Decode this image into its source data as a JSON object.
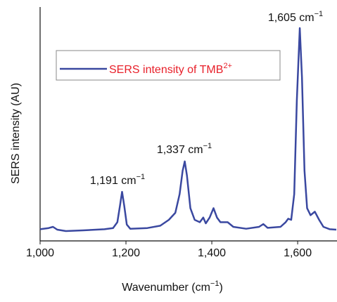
{
  "chart_data": {
    "type": "line",
    "xlabel": "Wavenumber (cm",
    "xlabel_sup": "−1",
    "xlabel_end": ")",
    "ylabel": "SERS intensity (AU)",
    "x": [
      1000,
      1020,
      1030,
      1040,
      1060,
      1100,
      1150,
      1170,
      1180,
      1186,
      1191,
      1196,
      1202,
      1210,
      1250,
      1280,
      1300,
      1315,
      1325,
      1332,
      1337,
      1342,
      1350,
      1360,
      1372,
      1380,
      1386,
      1395,
      1404,
      1412,
      1420,
      1437,
      1450,
      1480,
      1510,
      1520,
      1530,
      1560,
      1572,
      1578,
      1585,
      1592,
      1598,
      1605,
      1610,
      1616,
      1622,
      1630,
      1640,
      1650,
      1660,
      1675,
      1690
    ],
    "series": [
      {
        "name": "SERS intensity of TMB",
        "name_sup": "2+",
        "color": "#3a48a0",
        "legend_text_color": "#e8202a",
        "values": [
          5,
          5.5,
          6,
          4.8,
          4.2,
          4.5,
          5,
          5.5,
          8,
          15,
          21,
          15,
          7,
          5.2,
          5.5,
          6.5,
          9,
          12,
          20,
          30,
          34,
          28,
          14,
          9,
          8,
          10,
          7.5,
          10,
          14,
          10,
          8,
          8,
          6,
          5.2,
          6,
          7.2,
          5.6,
          6,
          8,
          9.5,
          9,
          20,
          60,
          91,
          70,
          30,
          14,
          11,
          12.5,
          9,
          6,
          5,
          4.8
        ]
      }
    ],
    "xlim": [
      1000,
      1690
    ],
    "ylim": [
      0,
      100
    ],
    "xticks": [
      {
        "value": 1000,
        "label": "1,000"
      },
      {
        "value": 1200,
        "label": "1,200"
      },
      {
        "value": 1400,
        "label": "1,400"
      },
      {
        "value": 1600,
        "label": "1,600"
      }
    ],
    "annotations": [
      {
        "text": "1,191 cm",
        "sup": "−1"
      },
      {
        "text": "1,337 cm",
        "sup": "−1"
      },
      {
        "text": "1,605 cm",
        "sup": "−1"
      }
    ],
    "legend": "upper left"
  }
}
